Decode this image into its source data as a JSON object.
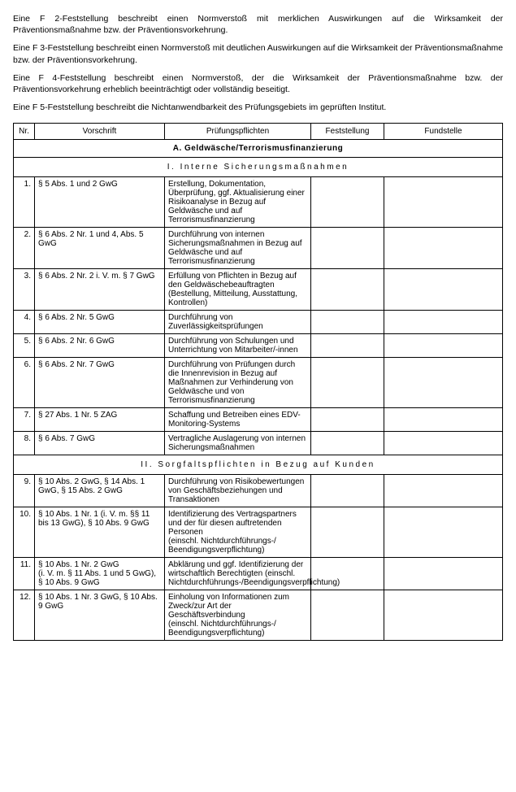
{
  "intro": {
    "p1": "Eine F 2-Feststellung beschreibt einen Normverstoß mit merklichen Auswirkungen auf die Wirksamkeit der Präventionsmaßnahme bzw. der Präventionsvorkehrung.",
    "p2": "Eine F 3-Feststellung beschreibt einen Normverstoß mit deutlichen Auswirkungen auf die Wirksamkeit der Präventionsmaßnahme bzw. der Präventionsvorkehrung.",
    "p3": "Eine F 4-Feststellung beschreibt einen Normverstoß, der die Wirksamkeit der Präventionsmaßnahme bzw. der Präventionsvorkehrung erheblich beeinträchtigt oder vollständig beseitigt.",
    "p4": "Eine F 5-Feststellung beschreibt die Nichtanwendbarkeit des Prüfungsgebiets im geprüften Institut."
  },
  "table": {
    "headers": {
      "nr": "Nr.",
      "vorschrift": "Vorschrift",
      "pflichten": "Prüfungspflichten",
      "feststellung": "Feststellung",
      "fundstelle": "Fundstelle"
    },
    "sectionA": "A. Geldwäsche/Terrorismusfinanzierung",
    "sub1": "I. Interne Sicherungsmaßnahmen",
    "sub2": "II. Sorgfaltspflichten in Bezug auf Kunden",
    "rows": [
      {
        "nr": "1.",
        "v": "§ 5 Abs. 1 und 2 GwG",
        "p": "Erstellung, Dokumentation, Überprüfung, ggf. Aktualisierung einer Risikoanalyse in Bezug auf Geldwäsche und auf Terrorismusfinanzierung",
        "f": "",
        "s": ""
      },
      {
        "nr": "2.",
        "v": "§ 6 Abs. 2 Nr. 1 und 4, Abs. 5 GwG",
        "p": "Durchführung von internen Sicherungsmaßnahmen in Bezug auf Geldwäsche und auf Terrorismusfinanzierung",
        "f": "",
        "s": ""
      },
      {
        "nr": "3.",
        "v": "§ 6 Abs. 2 Nr. 2 i. V. m. § 7 GwG",
        "p": "Erfüllung von Pflichten in Bezug auf den Geldwäschebeauftragten (Bestellung, Mitteilung, Ausstattung, Kontrollen)",
        "f": "",
        "s": ""
      },
      {
        "nr": "4.",
        "v": "§ 6 Abs. 2 Nr. 5 GwG",
        "p": "Durchführung von Zuverlässigkeitsprüfungen",
        "f": "",
        "s": ""
      },
      {
        "nr": "5.",
        "v": "§ 6 Abs. 2 Nr. 6 GwG",
        "p": "Durchführung von Schulungen und Unterrichtung von Mitarbeiter/-innen",
        "f": "",
        "s": ""
      },
      {
        "nr": "6.",
        "v": "§ 6 Abs. 2 Nr. 7 GwG",
        "p": "Durchführung von Prüfungen durch die Innenrevision in Bezug auf Maßnahmen zur Verhinderung von Geldwäsche und von Terrorismusfinanzierung",
        "f": "",
        "s": ""
      },
      {
        "nr": "7.",
        "v": "§ 27 Abs. 1 Nr. 5 ZAG",
        "p": "Schaffung und Betreiben eines EDV-Monitoring-Systems",
        "f": "",
        "s": ""
      },
      {
        "nr": "8.",
        "v": "§ 6 Abs. 7 GwG",
        "p": "Vertragliche Auslagerung von internen Sicherungsmaßnahmen",
        "f": "",
        "s": ""
      }
    ],
    "rows2": [
      {
        "nr": "9.",
        "v": "§ 10 Abs. 2 GwG, § 14 Abs. 1 GwG, § 15 Abs. 2 GwG",
        "p": "Durchführung von Risikobewertungen von Geschäftsbeziehungen und Transaktionen",
        "f": "",
        "s": ""
      },
      {
        "nr": "10.",
        "v": "§ 10 Abs. 1 Nr. 1 (i. V. m. §§ 11 bis 13 GwG), § 10 Abs. 9 GwG",
        "p": "Identifizierung des Vertragspartners und der für diesen auftretenden Personen\n(einschl. Nichtdurchführungs-/ Beendigungsverpflichtung)",
        "f": "",
        "s": ""
      },
      {
        "nr": "11.",
        "v": "§ 10 Abs. 1 Nr. 2 GwG\n(i. V. m. § 11 Abs. 1 und 5 GwG), § 10 Abs. 9 GwG",
        "p": "Abklärung und ggf. Identifizierung der wirtschaftlich Berechtigten (einschl. Nichtdurchführungs-/Beendigungsverpflichtung)",
        "f": "",
        "s": ""
      },
      {
        "nr": "12.",
        "v": "§ 10 Abs. 1 Nr. 3 GwG, § 10 Abs. 9 GwG",
        "p": "Einholung von Informationen zum Zweck/zur Art der Geschäftsverbindung\n(einschl. Nichtdurchführungs-/ Beendigungsverpflichtung)",
        "f": "",
        "s": ""
      }
    ]
  }
}
